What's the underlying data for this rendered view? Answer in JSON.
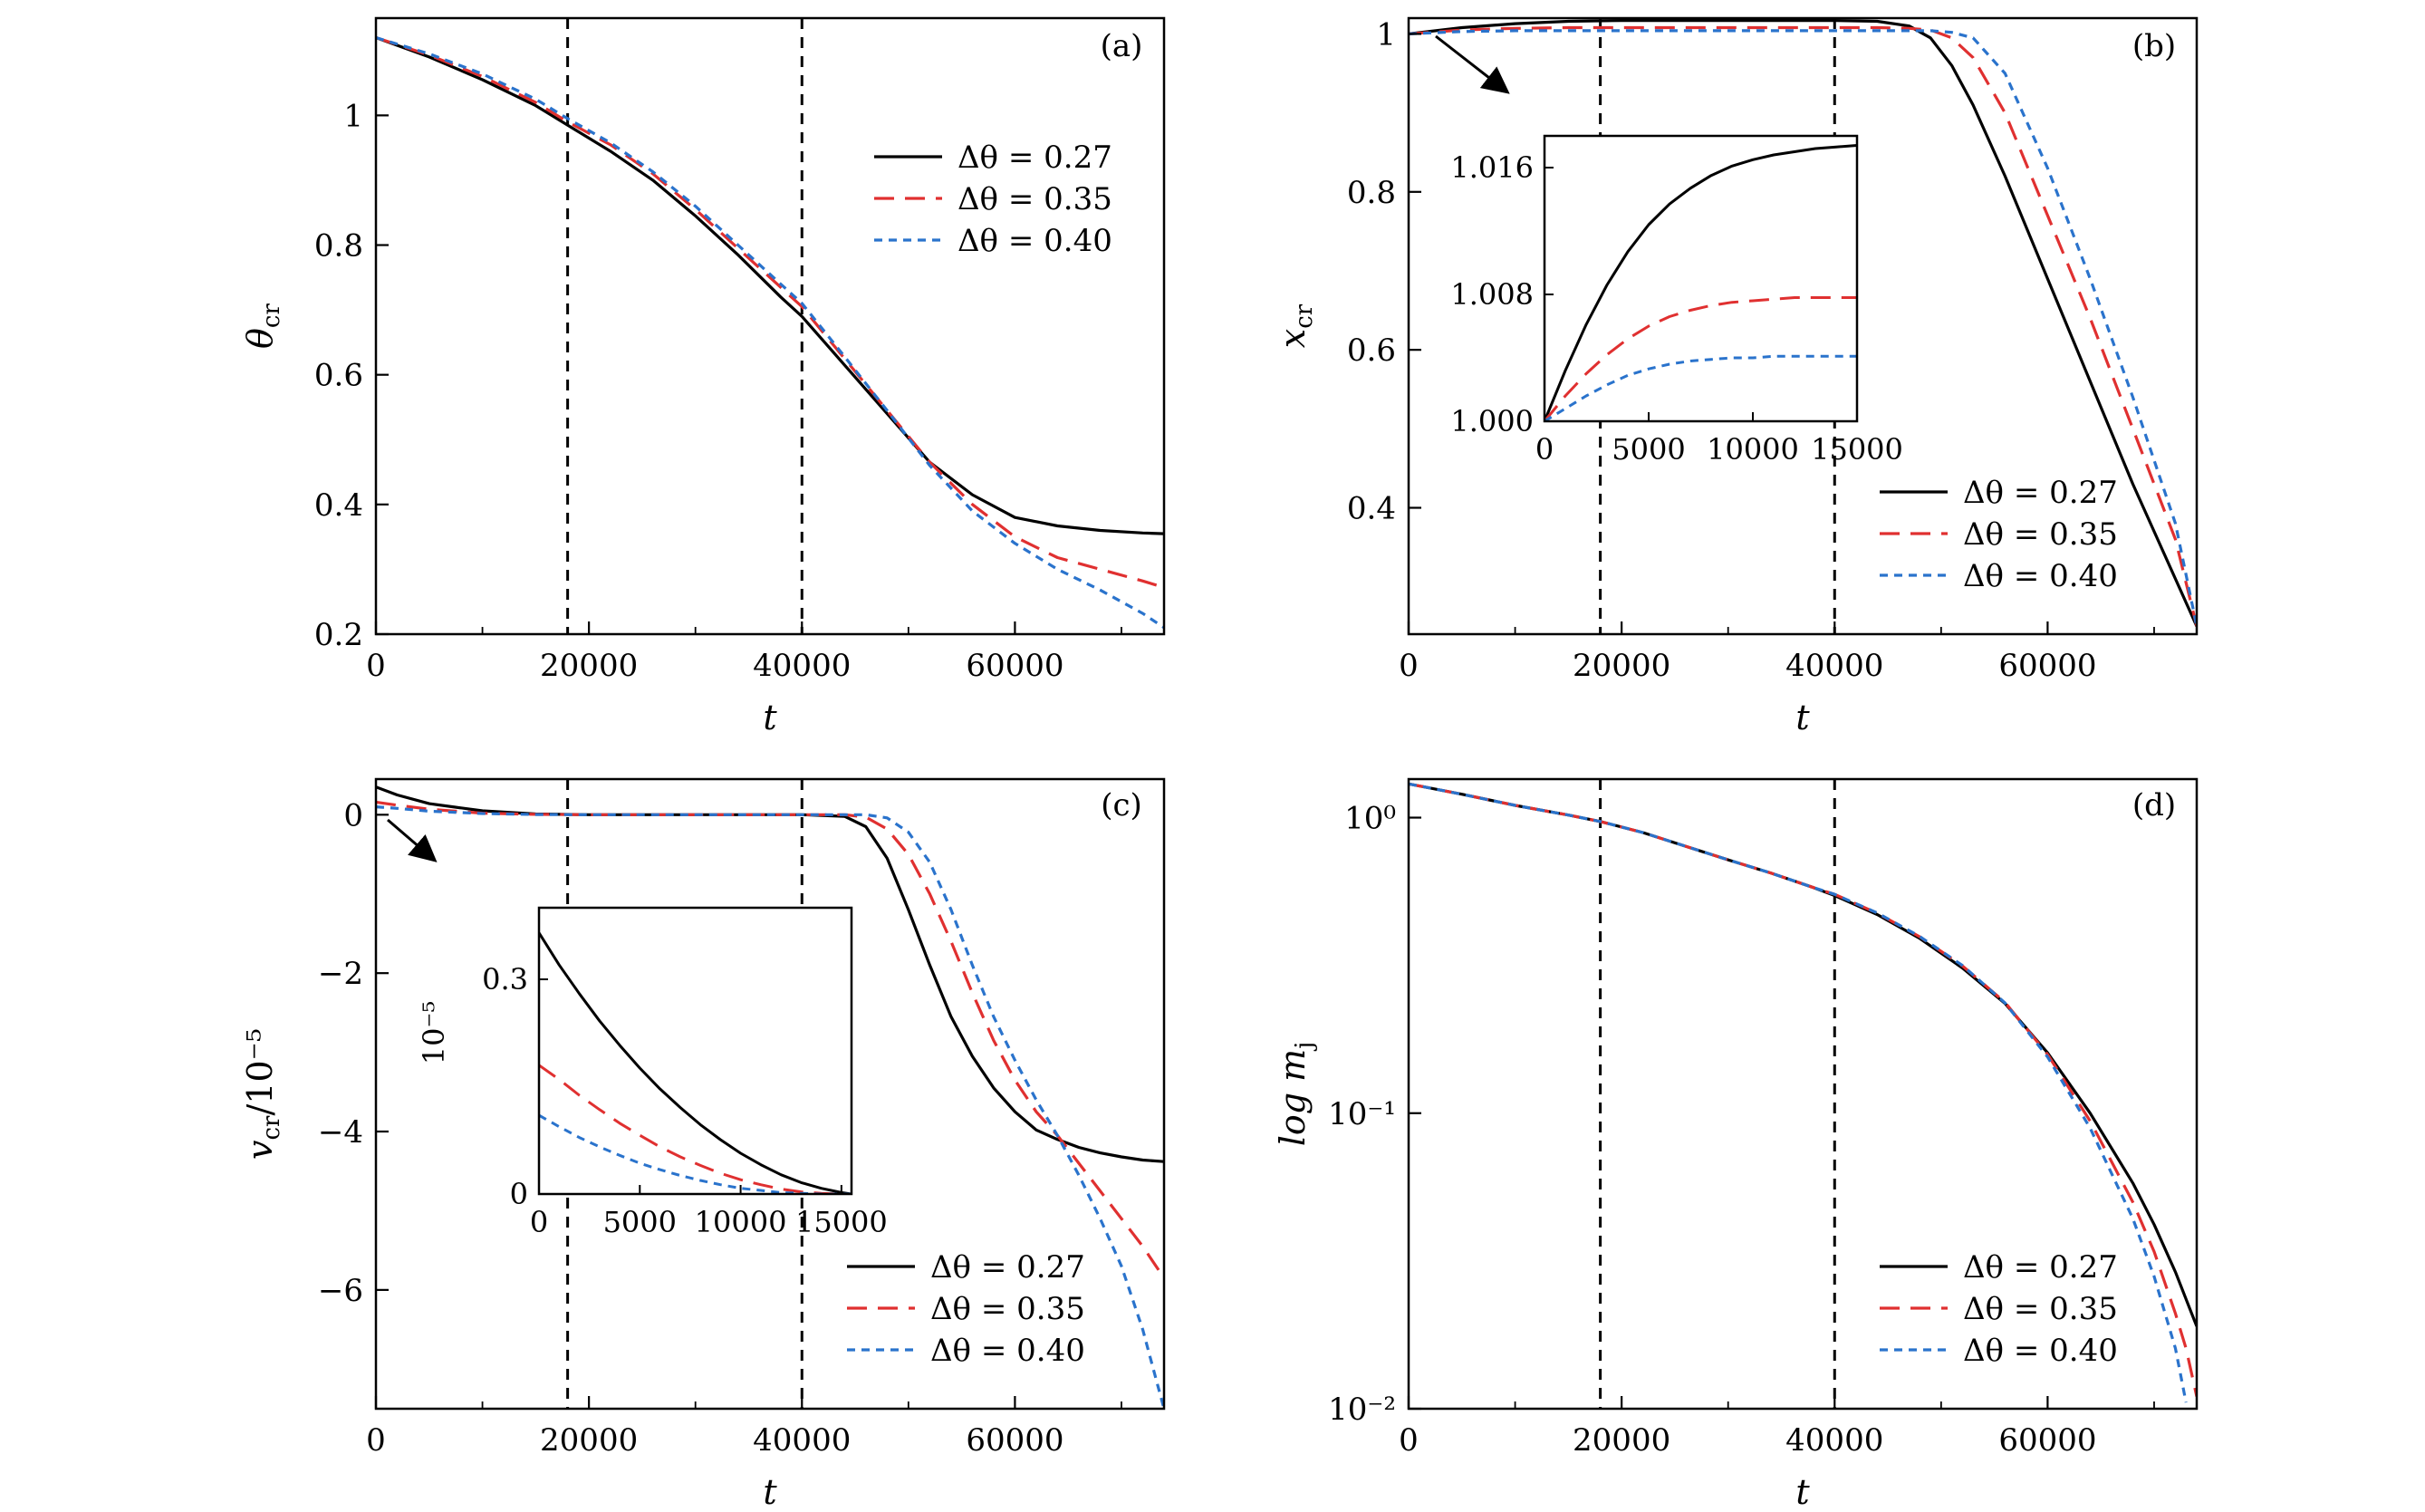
{
  "figure": {
    "panels": [
      {
        "id": "a",
        "label": "(a)",
        "xlabel": "t",
        "ylabel": "θ",
        "ylabel_sub": "cr",
        "ylabel_sup": ""
      },
      {
        "id": "b",
        "label": "(b)",
        "xlabel": "t",
        "ylabel": "x",
        "ylabel_sub": "cr",
        "ylabel_sup": ""
      },
      {
        "id": "c",
        "label": "(c)",
        "xlabel": "t",
        "ylabel": "v",
        "ylabel_sub": "cr",
        "ylabel_sup": "/10⁻⁵"
      },
      {
        "id": "d",
        "label": "(d)",
        "xlabel": "t",
        "ylabel": "log m",
        "ylabel_sub": "j",
        "ylabel_sup": ""
      }
    ],
    "inset_c_ylabel": "10⁻⁵",
    "colors": {
      "s027": "#000000",
      "s035": "#e03030",
      "s040": "#2a73cc",
      "vline": "#000000"
    }
  },
  "chart_data": [
    {
      "type": "line",
      "panel": "a",
      "xlabel": "t",
      "ylabel": "θcr",
      "xlim": [
        0,
        74000
      ],
      "ylim": [
        0.2,
        1.15
      ],
      "xticks": [
        0,
        20000,
        40000,
        60000
      ],
      "yticks": [
        0.2,
        0.4,
        0.6,
        0.8,
        1.0
      ],
      "vlines": [
        18000,
        40000
      ],
      "legend_position": "right-middle",
      "series": [
        {
          "name": "Δθ = 0.27",
          "style": "solid",
          "x": [
            0,
            5000,
            10000,
            15000,
            18000,
            22000,
            26000,
            30000,
            34000,
            38000,
            40000,
            44000,
            48000,
            52000,
            56000,
            60000,
            64000,
            68000,
            72000,
            74000
          ],
          "y": [
            1.12,
            1.09,
            1.055,
            1.015,
            0.985,
            0.945,
            0.9,
            0.845,
            0.785,
            0.72,
            0.69,
            0.615,
            0.54,
            0.465,
            0.415,
            0.38,
            0.367,
            0.36,
            0.356,
            0.355
          ]
        },
        {
          "name": "Δθ = 0.35",
          "style": "dashed",
          "x": [
            0,
            5000,
            10000,
            15000,
            18000,
            22000,
            26000,
            30000,
            34000,
            38000,
            40000,
            44000,
            48000,
            52000,
            56000,
            60000,
            64000,
            68000,
            72000,
            74000
          ],
          "y": [
            1.12,
            1.093,
            1.06,
            1.02,
            0.99,
            0.955,
            0.91,
            0.855,
            0.795,
            0.735,
            0.705,
            0.625,
            0.545,
            0.465,
            0.4,
            0.35,
            0.318,
            0.3,
            0.282,
            0.272
          ]
        },
        {
          "name": "Δθ = 0.40",
          "style": "dotted",
          "x": [
            0,
            5000,
            10000,
            15000,
            18000,
            22000,
            26000,
            30000,
            34000,
            38000,
            40000,
            44000,
            48000,
            52000,
            56000,
            60000,
            64000,
            68000,
            72000,
            74000
          ],
          "y": [
            1.12,
            1.095,
            1.064,
            1.025,
            0.995,
            0.958,
            0.913,
            0.86,
            0.8,
            0.74,
            0.71,
            0.628,
            0.545,
            0.46,
            0.39,
            0.34,
            0.3,
            0.268,
            0.232,
            0.21
          ]
        }
      ]
    },
    {
      "type": "line",
      "panel": "b",
      "xlabel": "t",
      "ylabel": "xcr",
      "xlim": [
        0,
        74000
      ],
      "ylim": [
        0.24,
        1.02
      ],
      "xticks": [
        0,
        20000,
        40000,
        60000
      ],
      "yticks": [
        0.4,
        0.6,
        0.8,
        1.0
      ],
      "vlines": [
        18000,
        40000
      ],
      "legend_position": "bottom-right",
      "series": [
        {
          "name": "Δθ = 0.27",
          "style": "solid",
          "x": [
            0,
            5000,
            10000,
            15000,
            20000,
            30000,
            40000,
            44000,
            47000,
            49000,
            51000,
            53000,
            56000,
            60000,
            64000,
            68000,
            72000,
            74000
          ],
          "y": [
            1.0,
            1.008,
            1.013,
            1.016,
            1.017,
            1.017,
            1.017,
            1.016,
            1.01,
            0.995,
            0.96,
            0.91,
            0.82,
            0.69,
            0.56,
            0.43,
            0.31,
            0.25
          ]
        },
        {
          "name": "Δθ = 0.35",
          "style": "dashed",
          "x": [
            0,
            5000,
            10000,
            15000,
            20000,
            30000,
            40000,
            44000,
            47000,
            49000,
            51000,
            53000,
            56000,
            60000,
            64000,
            68000,
            72000,
            74000
          ],
          "y": [
            1.0,
            1.005,
            1.007,
            1.008,
            1.008,
            1.008,
            1.008,
            1.008,
            1.007,
            1.005,
            0.995,
            0.97,
            0.9,
            0.77,
            0.64,
            0.5,
            0.36,
            0.25
          ]
        },
        {
          "name": "Δθ = 0.40",
          "style": "dotted",
          "x": [
            0,
            5000,
            10000,
            15000,
            20000,
            30000,
            40000,
            44000,
            47000,
            49000,
            51000,
            53000,
            56000,
            60000,
            64000,
            68000,
            72000,
            74000
          ],
          "y": [
            1.0,
            1.003,
            1.004,
            1.004,
            1.004,
            1.004,
            1.004,
            1.004,
            1.004,
            1.004,
            1.002,
            0.995,
            0.95,
            0.83,
            0.69,
            0.54,
            0.38,
            0.25
          ]
        }
      ],
      "inset": {
        "xlim": [
          0,
          15000
        ],
        "ylim": [
          1.0,
          1.018
        ],
        "xticks": [
          0,
          5000,
          10000,
          15000
        ],
        "yticks": [
          1.0,
          1.008,
          1.016
        ],
        "ytick_labels": [
          "1.000",
          "1.008",
          "1.016"
        ],
        "series": [
          {
            "name": "Δθ = 0.27",
            "style": "solid",
            "x": [
              0,
              1000,
              2000,
              3000,
              4000,
              5000,
              6000,
              7000,
              8000,
              9000,
              10000,
              11000,
              12000,
              13000,
              14000,
              15000
            ],
            "y": [
              1.0,
              1.0032,
              1.0061,
              1.0086,
              1.0107,
              1.0124,
              1.0137,
              1.0147,
              1.0155,
              1.0161,
              1.0165,
              1.0168,
              1.017,
              1.0172,
              1.0173,
              1.0174
            ]
          },
          {
            "name": "Δθ = 0.35",
            "style": "dashed",
            "x": [
              0,
              1000,
              2000,
              3000,
              4000,
              5000,
              6000,
              7000,
              8000,
              9000,
              10000,
              11000,
              12000,
              13000,
              14000,
              15000
            ],
            "y": [
              1.0,
              1.0016,
              1.003,
              1.0042,
              1.0052,
              1.006,
              1.0066,
              1.007,
              1.0073,
              1.0075,
              1.0076,
              1.0077,
              1.0078,
              1.0078,
              1.0078,
              1.0078
            ]
          },
          {
            "name": "Δθ = 0.40",
            "style": "dotted",
            "x": [
              0,
              1000,
              2000,
              3000,
              4000,
              5000,
              6000,
              7000,
              8000,
              9000,
              10000,
              11000,
              12000,
              13000,
              14000,
              15000
            ],
            "y": [
              1.0,
              1.0008,
              1.0016,
              1.0023,
              1.0029,
              1.0033,
              1.0036,
              1.0038,
              1.0039,
              1.004,
              1.004,
              1.0041,
              1.0041,
              1.0041,
              1.0041,
              1.0041
            ]
          }
        ]
      }
    },
    {
      "type": "line",
      "panel": "c",
      "xlabel": "t",
      "ylabel": "vcr/10⁻⁵",
      "xlim": [
        0,
        74000
      ],
      "ylim": [
        -7.5,
        0.45
      ],
      "xticks": [
        0,
        20000,
        40000,
        60000
      ],
      "yticks": [
        -6,
        -4,
        -2,
        0
      ],
      "ytick_labels": [
        "−6",
        "−4",
        "−2",
        "0"
      ],
      "vlines": [
        18000,
        40000
      ],
      "legend_position": "bottom-right",
      "series": [
        {
          "name": "Δθ = 0.27",
          "style": "solid",
          "x": [
            0,
            2000,
            5000,
            10000,
            15000,
            20000,
            30000,
            40000,
            44000,
            46000,
            48000,
            50000,
            52000,
            54000,
            56000,
            58000,
            60000,
            62000,
            64000,
            66000,
            68000,
            70000,
            72000,
            74000
          ],
          "y": [
            0.35,
            0.25,
            0.14,
            0.05,
            0.01,
            0.0,
            0.0,
            0.0,
            -0.02,
            -0.15,
            -0.55,
            -1.2,
            -1.9,
            -2.55,
            -3.05,
            -3.45,
            -3.75,
            -3.98,
            -4.1,
            -4.2,
            -4.27,
            -4.32,
            -4.36,
            -4.38
          ]
        },
        {
          "name": "Δθ = 0.35",
          "style": "dashed",
          "x": [
            0,
            2000,
            5000,
            10000,
            15000,
            20000,
            30000,
            40000,
            44000,
            46000,
            48000,
            50000,
            52000,
            54000,
            56000,
            58000,
            60000,
            62000,
            64000,
            66000,
            68000,
            70000,
            72000,
            74000
          ],
          "y": [
            0.16,
            0.12,
            0.07,
            0.02,
            0.005,
            0.0,
            0.0,
            0.0,
            0.0,
            -0.03,
            -0.18,
            -0.5,
            -1.0,
            -1.6,
            -2.25,
            -2.85,
            -3.35,
            -3.75,
            -4.05,
            -4.4,
            -4.75,
            -5.1,
            -5.45,
            -5.85
          ]
        },
        {
          "name": "Δθ = 0.40",
          "style": "dotted",
          "x": [
            0,
            2000,
            5000,
            10000,
            15000,
            20000,
            30000,
            40000,
            44000,
            46000,
            48000,
            50000,
            52000,
            54000,
            56000,
            58000,
            60000,
            62000,
            64000,
            66000,
            68000,
            70000,
            72000,
            73000,
            74000
          ],
          "y": [
            0.1,
            0.08,
            0.045,
            0.015,
            0.003,
            0.0,
            0.0,
            0.0,
            0.0,
            0.0,
            -0.04,
            -0.22,
            -0.6,
            -1.2,
            -1.9,
            -2.55,
            -3.1,
            -3.6,
            -4.05,
            -4.55,
            -5.1,
            -5.7,
            -6.5,
            -7.0,
            -7.5
          ]
        }
      ],
      "inset": {
        "xlim": [
          0,
          15500
        ],
        "ylim": [
          0,
          0.4
        ],
        "xticks": [
          0,
          5000,
          10000,
          15000
        ],
        "yticks": [
          0,
          0.3
        ],
        "ytick_labels": [
          "0",
          "0.3"
        ],
        "series": [
          {
            "name": "Δθ = 0.27",
            "style": "solid",
            "x": [
              0,
              1000,
              2000,
              3000,
              4000,
              5000,
              6000,
              7000,
              8000,
              9000,
              10000,
              11000,
              12000,
              13000,
              14000,
              15000,
              15500
            ],
            "y": [
              0.365,
              0.32,
              0.28,
              0.242,
              0.208,
              0.176,
              0.147,
              0.121,
              0.097,
              0.076,
              0.057,
              0.041,
              0.027,
              0.016,
              0.008,
              0.002,
              0.0
            ]
          },
          {
            "name": "Δθ = 0.35",
            "style": "dashed",
            "x": [
              0,
              1000,
              2000,
              3000,
              4000,
              5000,
              6000,
              7000,
              8000,
              9000,
              10000,
              11000,
              12000,
              13000,
              14000,
              15000,
              15500
            ],
            "y": [
              0.18,
              0.16,
              0.138,
              0.118,
              0.099,
              0.082,
              0.066,
              0.052,
              0.04,
              0.029,
              0.02,
              0.013,
              0.007,
              0.003,
              0.001,
              0.0,
              0.0
            ]
          },
          {
            "name": "Δθ = 0.40",
            "style": "dotted",
            "x": [
              0,
              1000,
              2000,
              3000,
              4000,
              5000,
              6000,
              7000,
              8000,
              9000,
              10000,
              11000,
              12000,
              13000,
              14000,
              15000,
              15500
            ],
            "y": [
              0.11,
              0.094,
              0.079,
              0.066,
              0.054,
              0.043,
              0.034,
              0.026,
              0.019,
              0.013,
              0.008,
              0.005,
              0.002,
              0.001,
              0.0,
              0.0,
              0.0
            ]
          }
        ]
      }
    },
    {
      "type": "line",
      "panel": "d",
      "xlabel": "t",
      "ylabel": "log mj",
      "xlim": [
        0,
        74000
      ],
      "ylim": [
        0.01,
        1.35
      ],
      "yscale": "log",
      "xticks": [
        0,
        20000,
        40000,
        60000
      ],
      "yticks": [
        0.01,
        0.1,
        1
      ],
      "ytick_labels": [
        "10⁻²",
        "10⁻¹",
        "10⁰"
      ],
      "vlines": [
        18000,
        40000
      ],
      "legend_position": "bottom-right",
      "series": [
        {
          "name": "Δθ = 0.27",
          "style": "solid",
          "x": [
            0,
            5000,
            10000,
            15000,
            18000,
            22000,
            26000,
            30000,
            34000,
            38000,
            40000,
            44000,
            48000,
            52000,
            56000,
            60000,
            64000,
            68000,
            70000,
            72000,
            74000
          ],
          "y": [
            1.3,
            1.2,
            1.1,
            1.02,
            0.97,
            0.89,
            0.8,
            0.72,
            0.65,
            0.58,
            0.545,
            0.47,
            0.39,
            0.31,
            0.235,
            0.16,
            0.1,
            0.058,
            0.042,
            0.029,
            0.019
          ]
        },
        {
          "name": "Δθ = 0.35",
          "style": "dashed",
          "x": [
            0,
            5000,
            10000,
            15000,
            18000,
            22000,
            26000,
            30000,
            34000,
            38000,
            40000,
            44000,
            48000,
            52000,
            56000,
            60000,
            64000,
            68000,
            70000,
            72000,
            73000,
            74000
          ],
          "y": [
            1.3,
            1.2,
            1.1,
            1.02,
            0.97,
            0.89,
            0.8,
            0.72,
            0.65,
            0.58,
            0.55,
            0.475,
            0.395,
            0.315,
            0.237,
            0.158,
            0.094,
            0.05,
            0.034,
            0.021,
            0.016,
            0.011
          ]
        },
        {
          "name": "Δθ = 0.40",
          "style": "dotted",
          "x": [
            0,
            5000,
            10000,
            15000,
            18000,
            22000,
            26000,
            30000,
            34000,
            38000,
            40000,
            44000,
            48000,
            52000,
            56000,
            60000,
            64000,
            68000,
            70000,
            72000,
            73000
          ],
          "y": [
            1.3,
            1.2,
            1.1,
            1.02,
            0.97,
            0.89,
            0.8,
            0.72,
            0.65,
            0.58,
            0.55,
            0.476,
            0.396,
            0.316,
            0.236,
            0.155,
            0.089,
            0.044,
            0.028,
            0.016,
            0.0105
          ]
        }
      ]
    }
  ]
}
